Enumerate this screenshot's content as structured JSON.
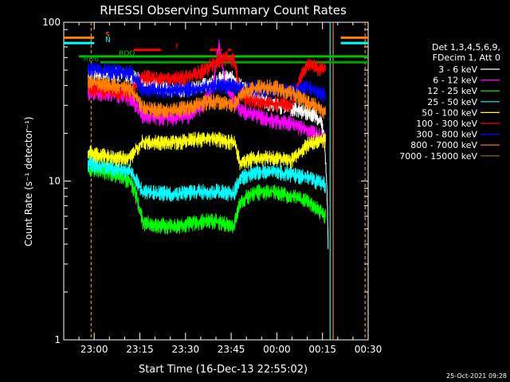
{
  "chart_data": {
    "type": "line",
    "title": "RHESSI Observing Summary Count Rates",
    "xlabel": "Start Time (16-Dec-13 22:55:02)",
    "ylabel": "Count Rate (s⁻¹ detector⁻¹)",
    "yscale": "log",
    "ylim": [
      1,
      100
    ],
    "xlim_minutes": [
      -5,
      95
    ],
    "x_ticks": [
      {
        "t": 5,
        "label": "23:00"
      },
      {
        "t": 20,
        "label": "23:15"
      },
      {
        "t": 35,
        "label": "23:30"
      },
      {
        "t": 50,
        "label": "23:45"
      },
      {
        "t": 65,
        "label": "00:00"
      },
      {
        "t": 80,
        "label": "00:15"
      },
      {
        "t": 95,
        "label": "00:30"
      }
    ],
    "y_ticks": [
      {
        "v": 1,
        "label": "1"
      },
      {
        "v": 10,
        "label": "10"
      },
      {
        "v": 100,
        "label": "100"
      }
    ],
    "legend": {
      "position": "right",
      "header": [
        "Det 1,3,4,5,6,9,",
        "FDecim 1, Att 0"
      ]
    },
    "series": [
      {
        "name": "3 - 6 keV",
        "color": "#ffffff",
        "points": [
          [
            3,
            48
          ],
          [
            12,
            47
          ],
          [
            17,
            46
          ],
          [
            21,
            42
          ],
          [
            26,
            40
          ],
          [
            31,
            38
          ],
          [
            36,
            38
          ],
          [
            41,
            40
          ],
          [
            45,
            43
          ],
          [
            48,
            45
          ],
          [
            51,
            44
          ],
          [
            53,
            40
          ],
          [
            58,
            34
          ],
          [
            64,
            30
          ],
          [
            70,
            29
          ],
          [
            75,
            27
          ],
          [
            78,
            26
          ],
          [
            80,
            22
          ],
          [
            81,
            14
          ],
          [
            82,
            2.3
          ]
        ]
      },
      {
        "name": "6 - 12 keV",
        "color": "#ff00ff",
        "points": [
          [
            3,
            36
          ],
          [
            12,
            35
          ],
          [
            17,
            33
          ],
          [
            21,
            26
          ],
          [
            26,
            25
          ],
          [
            31,
            25
          ],
          [
            36,
            26
          ],
          [
            41,
            30
          ],
          [
            44,
            40
          ],
          [
            46,
            70
          ],
          [
            48,
            40
          ],
          [
            51,
            32
          ],
          [
            53,
            28
          ],
          [
            58,
            26
          ],
          [
            64,
            24
          ],
          [
            70,
            23
          ],
          [
            75,
            21
          ],
          [
            78,
            20
          ],
          [
            81,
            18
          ]
        ]
      },
      {
        "name": "12 - 25 keV",
        "color": "#00ff00",
        "points": [
          [
            3,
            12
          ],
          [
            12,
            11
          ],
          [
            17,
            10
          ],
          [
            21,
            5.5
          ],
          [
            26,
            5.3
          ],
          [
            31,
            5.2
          ],
          [
            36,
            5.4
          ],
          [
            41,
            5.6
          ],
          [
            45,
            5.6
          ],
          [
            51,
            5.2
          ],
          [
            53,
            7.5
          ],
          [
            58,
            8.5
          ],
          [
            64,
            8.6
          ],
          [
            70,
            8
          ],
          [
            75,
            7.5
          ],
          [
            78,
            6.8
          ],
          [
            81,
            6
          ]
        ]
      },
      {
        "name": "25 - 50 keV",
        "color": "#00ffff",
        "points": [
          [
            3,
            13
          ],
          [
            12,
            12
          ],
          [
            17,
            11.5
          ],
          [
            21,
            8.5
          ],
          [
            26,
            8.4
          ],
          [
            31,
            8.3
          ],
          [
            36,
            8.5
          ],
          [
            41,
            8.6
          ],
          [
            45,
            8.6
          ],
          [
            51,
            8.4
          ],
          [
            53,
            10.5
          ],
          [
            58,
            11.5
          ],
          [
            64,
            11.5
          ],
          [
            70,
            11
          ],
          [
            75,
            10.5
          ],
          [
            78,
            10
          ],
          [
            81,
            9.5
          ]
        ]
      },
      {
        "name": "50 - 100 keV",
        "color": "#ffff00",
        "points": [
          [
            3,
            15
          ],
          [
            12,
            14
          ],
          [
            17,
            14
          ],
          [
            21,
            18
          ],
          [
            26,
            17.5
          ],
          [
            31,
            17.5
          ],
          [
            36,
            18
          ],
          [
            41,
            18.5
          ],
          [
            45,
            18.5
          ],
          [
            51,
            17.5
          ],
          [
            53,
            13
          ],
          [
            58,
            14
          ],
          [
            64,
            14
          ],
          [
            70,
            13.5
          ],
          [
            75,
            17
          ],
          [
            78,
            18
          ],
          [
            81,
            18
          ]
        ]
      },
      {
        "name": "100 - 300 keV",
        "color": "#ff0000",
        "points": [
          [
            3,
            38
          ],
          [
            12,
            37
          ],
          [
            17,
            36
          ],
          [
            21,
            45
          ],
          [
            26,
            44
          ],
          [
            31,
            44
          ],
          [
            36,
            45
          ],
          [
            41,
            50
          ],
          [
            44,
            55
          ],
          [
            48,
            60
          ],
          [
            51,
            58
          ],
          [
            53,
            34
          ],
          [
            58,
            32
          ],
          [
            64,
            31
          ],
          [
            70,
            30
          ],
          [
            75,
            55
          ],
          [
            78,
            52
          ],
          [
            81,
            50
          ]
        ]
      },
      {
        "name": "300 - 800 keV",
        "color": "#0000ff",
        "points": [
          [
            3,
            51
          ],
          [
            12,
            49
          ],
          [
            17,
            48
          ],
          [
            21,
            38
          ],
          [
            26,
            37
          ],
          [
            31,
            37
          ],
          [
            36,
            38
          ],
          [
            41,
            39
          ],
          [
            45,
            40
          ],
          [
            51,
            40
          ],
          [
            53,
            38
          ],
          [
            58,
            38
          ],
          [
            64,
            38
          ],
          [
            70,
            37
          ],
          [
            75,
            39
          ],
          [
            78,
            37
          ],
          [
            81,
            35
          ]
        ]
      },
      {
        "name": "800 - 7000 keV",
        "color": "#ff8000",
        "points": [
          [
            3,
            42
          ],
          [
            12,
            40
          ],
          [
            17,
            38
          ],
          [
            21,
            29
          ],
          [
            26,
            28
          ],
          [
            31,
            28
          ],
          [
            36,
            29
          ],
          [
            41,
            31
          ],
          [
            45,
            32
          ],
          [
            51,
            30
          ],
          [
            53,
            35
          ],
          [
            58,
            39
          ],
          [
            64,
            39
          ],
          [
            70,
            36
          ],
          [
            75,
            31
          ],
          [
            78,
            30
          ],
          [
            81,
            27
          ]
        ]
      },
      {
        "name": "7000 - 15000 keV",
        "color": "#808000",
        "points": []
      }
    ],
    "flag_bars": [
      {
        "label": "S",
        "color": "#ff8000",
        "v": 80,
        "segments": [
          [
            -5,
            5
          ],
          [
            86,
            95
          ]
        ]
      },
      {
        "label": "N",
        "color": "#00ffff",
        "v": 74,
        "segments": [
          [
            -5,
            5
          ],
          [
            86,
            95
          ]
        ]
      },
      {
        "label": "F",
        "color": "#ff0000",
        "v": 67,
        "segments": [
          [
            18,
            27
          ],
          [
            43,
            47
          ],
          [
            49,
            50
          ]
        ]
      },
      {
        "label": "RDO",
        "color": "#00c000",
        "v": 61,
        "segments": [
          [
            0,
            95
          ]
        ]
      },
      {
        "label": "RD6",
        "color": "#00a000",
        "v": 56,
        "segments": [
          [
            7,
            95
          ]
        ]
      }
    ],
    "vertical_markers": [
      {
        "t": 4,
        "color": "#ff8000",
        "dashed": true
      },
      {
        "t": 82.5,
        "color": "#00ffff",
        "dashed": false
      },
      {
        "t": 83.5,
        "color": "#ff8000",
        "dashed": false
      },
      {
        "t": 94,
        "color": "#ff8000",
        "dashed": true
      }
    ],
    "grid": false
  },
  "footer": {
    "timestamp": "25-Oct-2021 09:28"
  }
}
